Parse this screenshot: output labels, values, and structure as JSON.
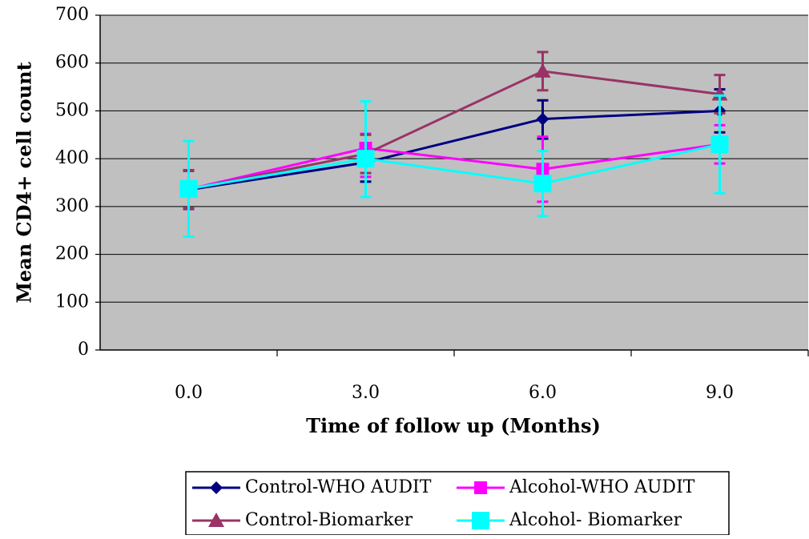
{
  "chart_data": {
    "type": "line",
    "title": "",
    "xlabel": "Time of follow up (Months)",
    "ylabel": "Mean CD4+ cell count",
    "categories": [
      "0.0",
      "3.0",
      "6.0",
      "9.0"
    ],
    "ylim": [
      0,
      700
    ],
    "yticks": [
      0,
      100,
      200,
      300,
      400,
      500,
      600,
      700
    ],
    "grid": true,
    "plot_background": "#c0c0c0",
    "legend_position": "bottom",
    "series": [
      {
        "name": "Control-WHO AUDIT",
        "color": "#000080",
        "marker": "diamond",
        "values": [
          335,
          392,
          483,
          500
        ],
        "error_low": [
          295,
          352,
          442,
          455
        ],
        "error_high": [
          375,
          432,
          522,
          545
        ]
      },
      {
        "name": "Alcohol-WHO AUDIT",
        "color": "#ff00ff",
        "marker": "square",
        "values": [
          336,
          422,
          378,
          430
        ],
        "error_low": [
          296,
          362,
          310,
          390
        ],
        "error_high": [
          376,
          452,
          446,
          470
        ]
      },
      {
        "name": "Control-Biomarker",
        "color": "#993366",
        "marker": "triangle",
        "values": [
          336,
          410,
          583,
          535
        ],
        "error_low": [
          296,
          370,
          543,
          495
        ],
        "error_high": [
          376,
          450,
          623,
          575
        ]
      },
      {
        "name": "Alcohol- Biomarker",
        "color": "#00ffff",
        "marker": "square-large",
        "values": [
          337,
          400,
          348,
          430
        ],
        "error_low": [
          237,
          320,
          280,
          328
        ],
        "error_high": [
          437,
          520,
          416,
          532
        ]
      }
    ]
  }
}
